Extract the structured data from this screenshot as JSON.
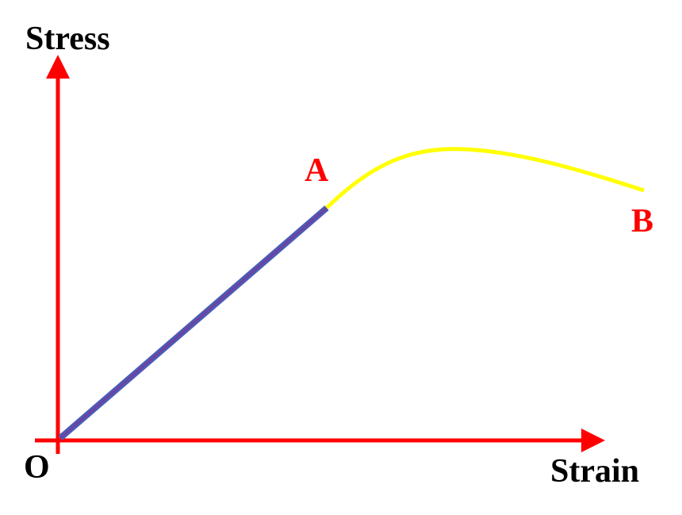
{
  "axes": {
    "y_label": "Stress",
    "x_label": "Strain",
    "origin_label": "O",
    "color": "#ff0000"
  },
  "points": {
    "a_label": "A",
    "b_label": "B",
    "color": "#ff0000"
  },
  "segments": {
    "linear_segment_color": "#4b5bb5",
    "linear_segment_inner_color": "#7a3a9a",
    "curve_segment_color": "#ffff00"
  }
}
